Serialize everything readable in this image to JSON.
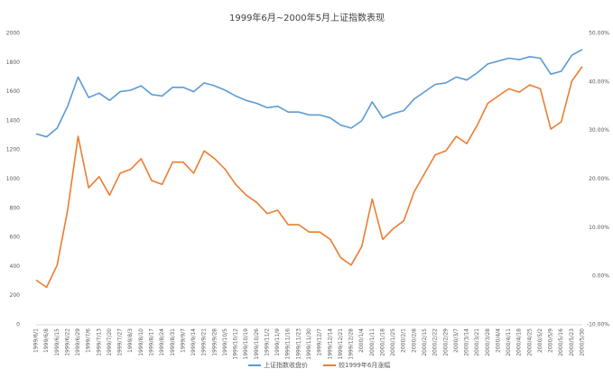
{
  "chart_data": {
    "type": "line",
    "title": "1999年6月~2000年5月上证指数表现",
    "x": [
      "1999/6/1",
      "1999/6/8",
      "1999/6/15",
      "1999/6/22",
      "1999/6/29",
      "1999/7/6",
      "1999/7/13",
      "1999/7/20",
      "1999/7/27",
      "1999/8/3",
      "1999/8/10",
      "1999/8/17",
      "1999/8/24",
      "1999/8/31",
      "1999/9/7",
      "1999/9/14",
      "1999/9/21",
      "1999/9/28",
      "1999/10/5",
      "1999/10/12",
      "1999/10/19",
      "1999/10/26",
      "1999/11/2",
      "1999/11/9",
      "1999/11/16",
      "1999/11/23",
      "1999/11/30",
      "1999/12/7",
      "1999/12/14",
      "1999/12/21",
      "1999/12/28",
      "2000/1/4",
      "2000/1/11",
      "2000/1/18",
      "2000/1/25",
      "2000/2/1",
      "2000/2/8",
      "2000/2/15",
      "2000/2/22",
      "2000/2/29",
      "2000/3/7",
      "2000/3/14",
      "2000/3/21",
      "2000/3/28",
      "2000/4/4",
      "2000/4/11",
      "2000/4/18",
      "2000/4/25",
      "2000/5/2",
      "2000/5/9",
      "2000/5/16",
      "2000/5/23",
      "2000/5/30"
    ],
    "series": [
      {
        "name": "上证指数收盘价",
        "color": "#5b9bd5",
        "axis": "y",
        "values": [
          1310,
          1290,
          1350,
          1500,
          1700,
          1560,
          1590,
          1540,
          1600,
          1610,
          1640,
          1580,
          1570,
          1630,
          1630,
          1600,
          1660,
          1640,
          1610,
          1570,
          1540,
          1520,
          1490,
          1500,
          1460,
          1460,
          1440,
          1440,
          1420,
          1370,
          1350,
          1400,
          1530,
          1420,
          1450,
          1470,
          1550,
          1600,
          1650,
          1660,
          1700,
          1680,
          1730,
          1790,
          1810,
          1830,
          1820,
          1840,
          1830,
          1720,
          1740,
          1850,
          1890
        ]
      },
      {
        "name": "较1999年6月涨幅",
        "color": "#ed7d31",
        "axis": "y2",
        "values": [
          -0.8,
          -2.3,
          2.3,
          13.6,
          28.8,
          18.2,
          20.5,
          16.7,
          21.2,
          22.0,
          24.2,
          19.7,
          18.9,
          23.5,
          23.5,
          21.2,
          25.8,
          24.2,
          22.0,
          18.9,
          16.7,
          15.2,
          12.9,
          13.6,
          10.6,
          10.6,
          9.1,
          9.1,
          7.6,
          3.8,
          2.3,
          6.1,
          15.9,
          7.6,
          9.8,
          11.4,
          17.4,
          21.2,
          25.0,
          25.8,
          28.8,
          27.3,
          31.1,
          35.6,
          37.1,
          38.6,
          37.9,
          39.4,
          38.6,
          30.3,
          31.8,
          40.2,
          43.2
        ]
      }
    ],
    "ylim": [
      0,
      2000
    ],
    "yticks": [
      0,
      200,
      400,
      600,
      800,
      1000,
      1200,
      1400,
      1600,
      1800,
      2000
    ],
    "y2lim": [
      -10,
      50
    ],
    "y2ticks": [
      {
        "value": -10,
        "label": "-10.00%"
      },
      {
        "value": 0,
        "label": "0.00%"
      },
      {
        "value": 10,
        "label": "10.00%"
      },
      {
        "value": 20,
        "label": "20.00%"
      },
      {
        "value": 30,
        "label": "30.00%"
      },
      {
        "value": 40,
        "label": "40.00%"
      },
      {
        "value": 50,
        "label": "50.00%"
      }
    ],
    "grid": false,
    "legend": "bottom"
  }
}
